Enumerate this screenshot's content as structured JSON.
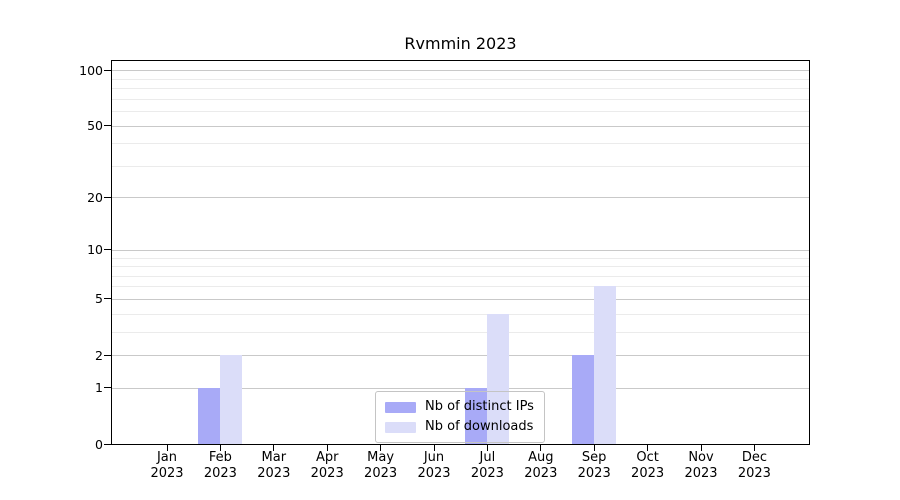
{
  "title": "Rvmmin 2023",
  "year": "2023",
  "colors": {
    "distinct_ips": "#a8aaf7",
    "downloads": "#dbddf9",
    "major_grid": "#c9c9c9",
    "minor_grid": "#ebebeb",
    "axis": "#000000"
  },
  "legend": {
    "items": [
      {
        "label": "Nb of distinct IPs",
        "color": "#a8aaf7"
      },
      {
        "label": "Nb of downloads",
        "color": "#dbddf9"
      }
    ],
    "position": "inside-bottom-center"
  },
  "chart_data": {
    "type": "bar",
    "title": "Rvmmin 2023",
    "categories": [
      "Jan 2023",
      "Feb 2023",
      "Mar 2023",
      "Apr 2023",
      "May 2023",
      "Jun 2023",
      "Jul 2023",
      "Aug 2023",
      "Sep 2023",
      "Oct 2023",
      "Nov 2023",
      "Dec 2023"
    ],
    "series": [
      {
        "name": "Nb of distinct IPs",
        "color": "#a8aaf7",
        "values": [
          0,
          1,
          0,
          0,
          0,
          0,
          1,
          0,
          2,
          0,
          0,
          0
        ]
      },
      {
        "name": "Nb of downloads",
        "color": "#dbddf9",
        "values": [
          0,
          2,
          0,
          0,
          0,
          0,
          4,
          0,
          6,
          0,
          0,
          0
        ]
      }
    ],
    "xlabel": "",
    "ylabel": "",
    "yscale": "log1p",
    "ylim": [
      0,
      112
    ],
    "yticks": [
      0,
      1,
      2,
      5,
      10,
      20,
      50,
      100
    ],
    "minor_gridlines": [
      3,
      4,
      6,
      7,
      8,
      9,
      30,
      40,
      60,
      70,
      80,
      90
    ],
    "grid": true,
    "legend_position": "inside-bottom-center"
  }
}
